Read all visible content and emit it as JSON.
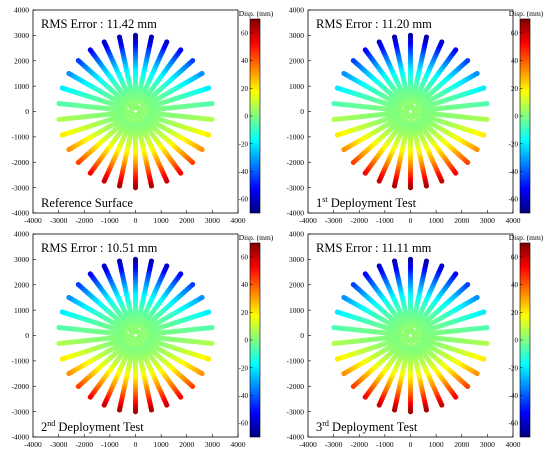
{
  "figure": {
    "colorbar_label": "Disp. (mm)",
    "colorbar_ticks": [
      60,
      40,
      20,
      0,
      -20,
      -40,
      -60
    ],
    "colorbar_range": [
      -70,
      70
    ],
    "colorbar_colors": [
      "#00007f",
      "#0000ff",
      "#007fff",
      "#00ffff",
      "#7fff7f",
      "#ffff00",
      "#ff7f00",
      "#ff0000",
      "#7f0000"
    ]
  },
  "chart_data": [
    {
      "type": "scatter",
      "title": "RMS Error : 11.42 mm",
      "caption_main": "Reference  Surface",
      "caption_sup": "",
      "caption_tail": "",
      "xlim": [
        -4000,
        4000
      ],
      "ylim": [
        -4000,
        4000
      ],
      "xticks": [
        -4000,
        -3000,
        -2000,
        -1000,
        0,
        1000,
        2000,
        3000,
        4000
      ],
      "yticks": [
        4000,
        3000,
        2000,
        1000,
        0,
        -1000,
        -2000,
        -3000,
        -4000
      ],
      "spokes": 30,
      "inner_radius": 500,
      "outer_radius": 3000,
      "displacement": {
        "top": -65,
        "bottom": 65,
        "center": 0
      }
    },
    {
      "type": "scatter",
      "title": "RMS Error : 11.20 mm",
      "caption_main": "1",
      "caption_sup": "st",
      "caption_tail": " Deployment Test",
      "xlim": [
        -4000,
        4000
      ],
      "ylim": [
        -4000,
        4000
      ],
      "xticks": [
        -4000,
        -3000,
        -2000,
        -1000,
        0,
        1000,
        2000,
        3000,
        4000
      ],
      "yticks": [
        4000,
        3000,
        2000,
        1000,
        0,
        -1000,
        -2000,
        -3000,
        -4000
      ],
      "spokes": 30,
      "inner_radius": 500,
      "outer_radius": 3000,
      "displacement": {
        "top": -65,
        "bottom": 65,
        "center": 0
      }
    },
    {
      "type": "scatter",
      "title": "RMS Error : 10.51 mm",
      "caption_main": "2",
      "caption_sup": "nd",
      "caption_tail": " Deployment Test",
      "xlim": [
        -4000,
        4000
      ],
      "ylim": [
        -4000,
        4000
      ],
      "xticks": [
        -4000,
        -3000,
        -2000,
        -1000,
        0,
        1000,
        2000,
        3000,
        4000
      ],
      "yticks": [
        4000,
        3000,
        2000,
        1000,
        0,
        -1000,
        -2000,
        -3000,
        -4000
      ],
      "spokes": 30,
      "inner_radius": 500,
      "outer_radius": 3000,
      "displacement": {
        "top": -65,
        "bottom": 65,
        "center": 0
      }
    },
    {
      "type": "scatter",
      "title": "RMS Error : 11.11 mm",
      "caption_main": "3",
      "caption_sup": "rd",
      "caption_tail": " Deployment Test",
      "xlim": [
        -4000,
        4000
      ],
      "ylim": [
        -4000,
        4000
      ],
      "xticks": [
        -4000,
        -3000,
        -2000,
        -1000,
        0,
        1000,
        2000,
        3000,
        4000
      ],
      "yticks": [
        4000,
        3000,
        2000,
        1000,
        0,
        -1000,
        -2000,
        -3000,
        -4000
      ],
      "spokes": 30,
      "inner_radius": 500,
      "outer_radius": 3000,
      "displacement": {
        "top": -65,
        "bottom": 65,
        "center": 0
      }
    }
  ]
}
